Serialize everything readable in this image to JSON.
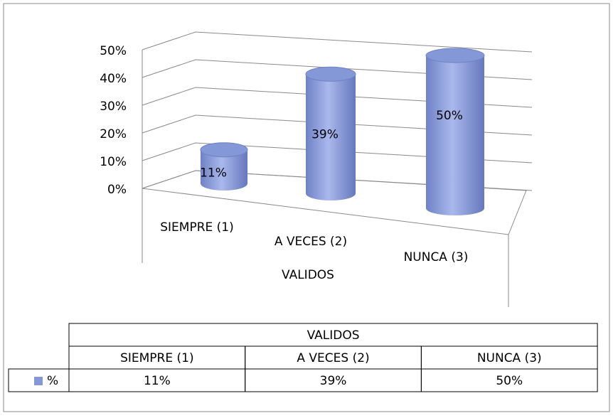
{
  "chart_data": {
    "type": "bar3d",
    "categories": [
      "SIEMPRE (1)",
      "A VECES (2)",
      "NUNCA (3)"
    ],
    "x_label": "VALIDOS",
    "series": [
      {
        "name": "%",
        "color": "#8497d6",
        "values": [
          11,
          39,
          50
        ],
        "value_labels": [
          "11%",
          "39%",
          "50%"
        ]
      }
    ],
    "ylim": [
      0,
      50
    ],
    "yticks": [
      {
        "value": 0,
        "label": "0%"
      },
      {
        "value": 10,
        "label": "10%"
      },
      {
        "value": 20,
        "label": "20%"
      },
      {
        "value": 30,
        "label": "30%"
      },
      {
        "value": 40,
        "label": "40%"
      },
      {
        "value": 50,
        "label": "50%"
      }
    ],
    "grid": true,
    "data_table": true
  }
}
